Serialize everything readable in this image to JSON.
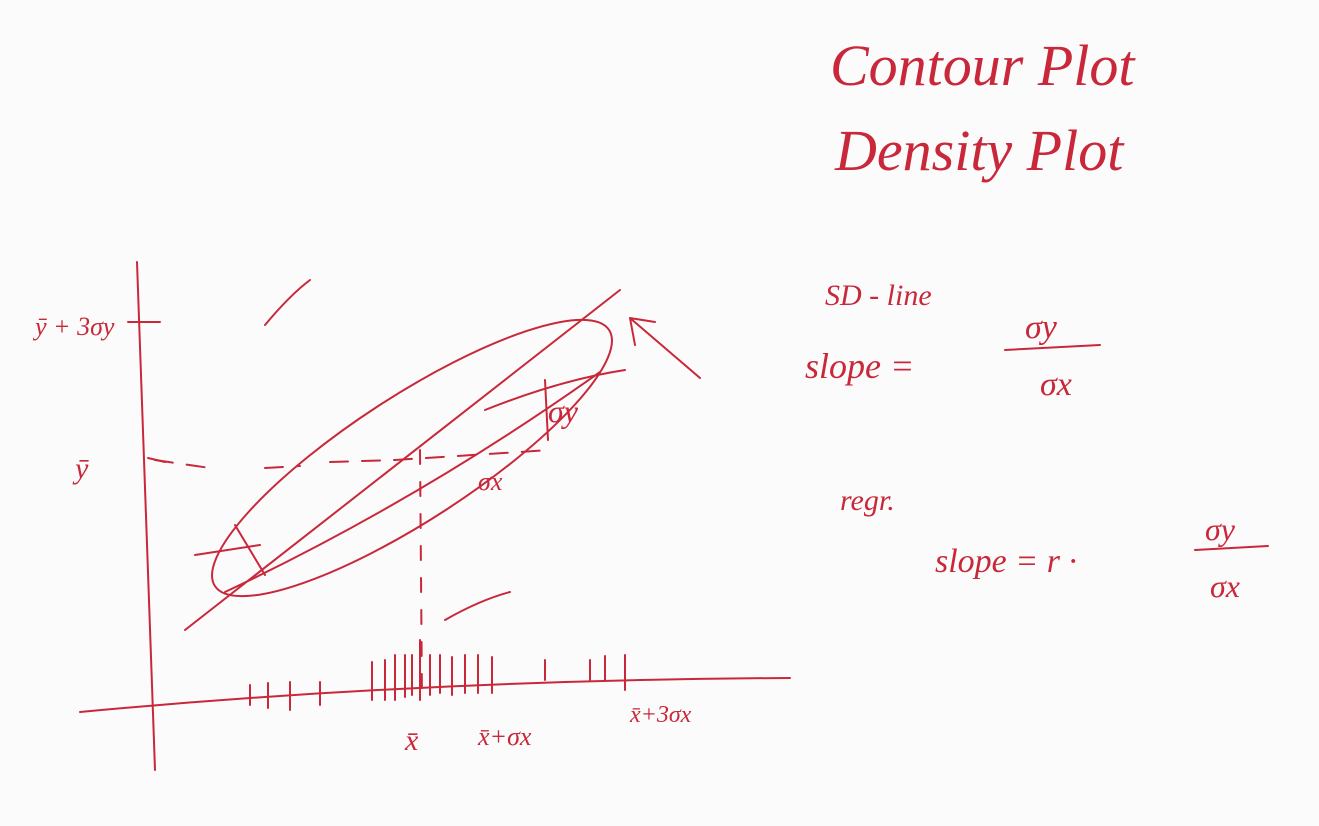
{
  "titles": [
    "Contour Plot",
    "Density Plot"
  ],
  "sd_line": {
    "label": "SD - line",
    "slope": "slope =",
    "numerator": "σy",
    "denominator": "σx"
  },
  "regression": {
    "label": "regr.",
    "slope": "slope = r ·",
    "numerator": "σy",
    "denominator": "σx"
  },
  "axes": {
    "y_labels": [
      "ȳ + 3σy",
      "ȳ"
    ],
    "x_labels": [
      "x̄",
      "x̄+σx",
      "x̄+3σx"
    ]
  },
  "sketch_labels": [
    "σy",
    "σx"
  ]
}
